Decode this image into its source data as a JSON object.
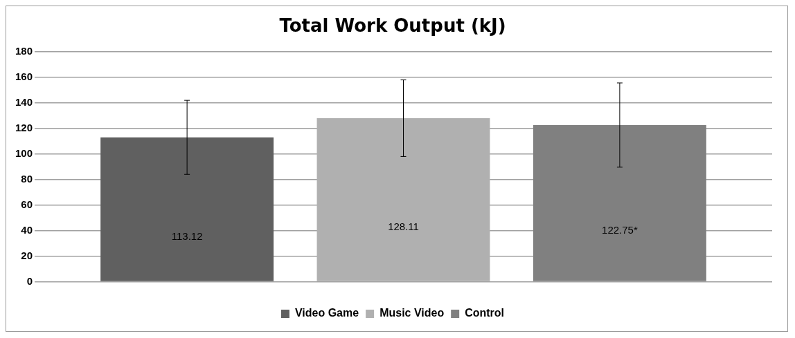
{
  "chart_data": {
    "type": "bar",
    "title": "Total Work Output (kJ)",
    "categories": [
      null
    ],
    "series": [
      {
        "name": "Video Game",
        "color": "#606060",
        "values": [
          113.12
        ],
        "errors": [
          29
        ],
        "value_labels": [
          "113.12"
        ]
      },
      {
        "name": "Music Video",
        "color": "#b0b0b0",
        "values": [
          128.11
        ],
        "errors": [
          30
        ],
        "value_labels": [
          "128.11"
        ]
      },
      {
        "name": "Control",
        "color": "#808080",
        "values": [
          122.75
        ],
        "errors": [
          33
        ],
        "value_labels": [
          "122.75*"
        ]
      }
    ],
    "ylim": [
      0,
      180
    ],
    "yticks": [
      0,
      20,
      40,
      60,
      80,
      100,
      120,
      140,
      160,
      180
    ],
    "grid": "y",
    "legend": "bottom"
  }
}
